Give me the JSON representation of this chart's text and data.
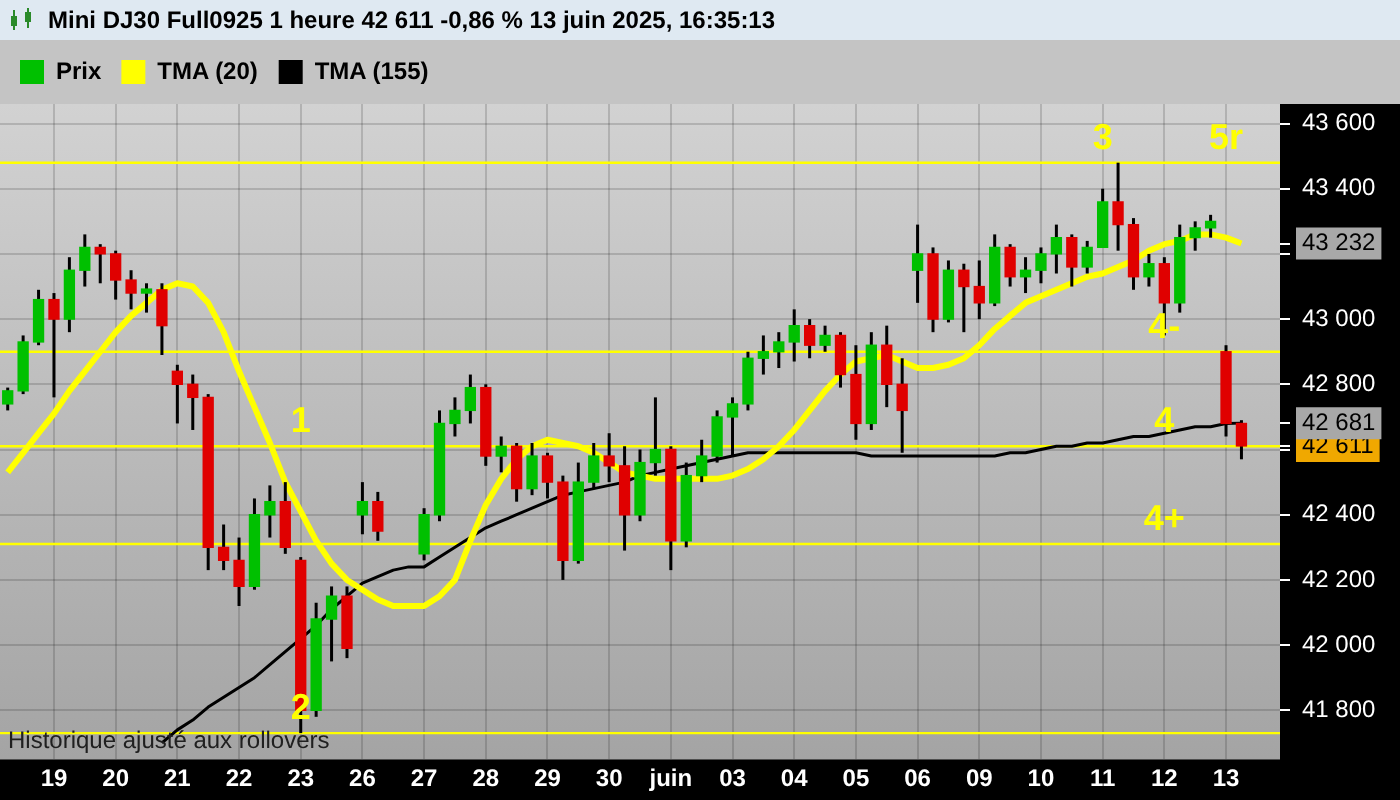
{
  "chart_data": {
    "type": "candlestick",
    "title": "Mini DJ30 Full0925 1 heure 42 611 -0,86 % 13 juin 2025, 16:35:13",
    "categories": [
      null,
      null,
      null,
      "19",
      null,
      null,
      null,
      "20",
      null,
      null,
      null,
      "21",
      null,
      null,
      null,
      "22",
      null,
      null,
      null,
      "23",
      null,
      null,
      null,
      "26",
      null,
      null,
      null,
      "27",
      null,
      null,
      null,
      "28",
      null,
      null,
      null,
      "29",
      null,
      null,
      null,
      "30",
      null,
      null,
      null,
      "juin",
      null,
      null,
      null,
      "03",
      null,
      null,
      null,
      "04",
      null,
      null,
      null,
      "05",
      null,
      null,
      null,
      "06",
      null,
      null,
      null,
      "09",
      null,
      null,
      null,
      "10",
      null,
      null,
      null,
      "11",
      null,
      null,
      null,
      "12",
      null,
      null,
      null,
      "13",
      null,
      null,
      null
    ],
    "series": [
      {
        "name": "Prix",
        "colors": [
          "#00c000",
          "#00c000",
          "#00c000",
          "#e00000",
          "#00c000",
          "#00c000",
          "#e00000",
          "#e00000",
          "#e00000",
          "#00c000",
          "#e00000",
          "#e00000",
          "#e00000",
          "#e00000",
          "#e00000",
          "#e00000",
          "#00c000",
          "#00c000",
          "#e00000",
          "#e00000",
          "#00c000",
          "#00c000",
          "#e00000",
          "#00c000",
          "#e00000",
          null,
          null,
          "#00c000",
          "#00c000",
          "#00c000",
          "#00c000",
          "#e00000",
          "#00c000",
          "#e00000",
          "#00c000",
          "#e00000",
          "#e00000",
          "#00c000",
          "#00c000",
          "#e00000",
          "#e00000",
          "#00c000",
          "#00c000",
          "#e00000",
          "#00c000",
          "#00c000",
          "#00c000",
          "#00c000",
          "#00c000",
          "#00c000",
          "#00c000",
          "#00c000",
          "#e00000",
          "#00c000",
          "#e00000",
          "#e00000",
          "#00c000",
          "#e00000",
          "#e00000",
          "#00c000",
          "#e00000",
          "#00c000",
          "#e00000",
          "#e00000",
          "#00c000",
          "#e00000",
          "#00c000",
          "#00c000",
          "#00c000",
          "#e00000",
          "#00c000",
          "#00c000",
          "#e00000",
          "#e00000",
          "#00c000",
          "#e00000",
          "#00c000",
          "#00c000",
          "#00c000",
          "#e00000",
          "#e00000",
          null,
          null
        ],
        "ohlc": [
          [
            42740,
            42790,
            42720,
            42780
          ],
          [
            42780,
            42950,
            42770,
            42930
          ],
          [
            42930,
            43090,
            42920,
            43060
          ],
          [
            43060,
            43080,
            42760,
            43000
          ],
          [
            43000,
            43190,
            42960,
            43150
          ],
          [
            43150,
            43260,
            43100,
            43220
          ],
          [
            43220,
            43230,
            43110,
            43200
          ],
          [
            43200,
            43210,
            43060,
            43120
          ],
          [
            43120,
            43150,
            43030,
            43080
          ],
          [
            43080,
            43110,
            43020,
            43090
          ],
          [
            43090,
            43110,
            42890,
            42980
          ],
          [
            42840,
            42860,
            42680,
            42800
          ],
          [
            42800,
            42830,
            42660,
            42760
          ],
          [
            42760,
            42770,
            42230,
            42300
          ],
          [
            42300,
            42370,
            42230,
            42260
          ],
          [
            42260,
            42330,
            42120,
            42180
          ],
          [
            42180,
            42450,
            42170,
            42400
          ],
          [
            42400,
            42490,
            42330,
            42440
          ],
          [
            42440,
            42500,
            42280,
            42300
          ],
          [
            42260,
            42270,
            41730,
            41800
          ],
          [
            41800,
            42130,
            41780,
            42080
          ],
          [
            42080,
            42180,
            41950,
            42150
          ],
          [
            42150,
            42180,
            41960,
            41990
          ],
          [
            42400,
            42500,
            42340,
            42440
          ],
          [
            42440,
            42470,
            42320,
            42350
          ],
          null,
          null,
          [
            42280,
            42420,
            42260,
            42400
          ],
          [
            42400,
            42720,
            42380,
            42680
          ],
          [
            42680,
            42760,
            42640,
            42720
          ],
          [
            42720,
            42830,
            42680,
            42790
          ],
          [
            42790,
            42800,
            42550,
            42580
          ],
          [
            42580,
            42640,
            42530,
            42610
          ],
          [
            42610,
            42620,
            42440,
            42480
          ],
          [
            42480,
            42620,
            42460,
            42580
          ],
          [
            42580,
            42590,
            42450,
            42500
          ],
          [
            42500,
            42520,
            42200,
            42260
          ],
          [
            42260,
            42560,
            42250,
            42500
          ],
          [
            42500,
            42620,
            42480,
            42580
          ],
          [
            42580,
            42650,
            42500,
            42550
          ],
          [
            42550,
            42610,
            42290,
            42400
          ],
          [
            42400,
            42600,
            42380,
            42560
          ],
          [
            42560,
            42760,
            42520,
            42600
          ],
          [
            42600,
            42610,
            42230,
            42320
          ],
          [
            42320,
            42560,
            42300,
            42520
          ],
          [
            42520,
            42630,
            42500,
            42580
          ],
          [
            42580,
            42720,
            42560,
            42700
          ],
          [
            42700,
            42760,
            42580,
            42740
          ],
          [
            42740,
            42900,
            42720,
            42880
          ],
          [
            42880,
            42950,
            42830,
            42900
          ],
          [
            42900,
            42960,
            42850,
            42930
          ],
          [
            42930,
            43030,
            42870,
            42980
          ],
          [
            42980,
            43000,
            42880,
            42920
          ],
          [
            42920,
            42980,
            42900,
            42950
          ],
          [
            42950,
            42960,
            42790,
            42830
          ],
          [
            42830,
            42920,
            42630,
            42680
          ],
          [
            42680,
            42960,
            42660,
            42920
          ],
          [
            42920,
            42980,
            42730,
            42800
          ],
          [
            42800,
            42880,
            42590,
            42720
          ],
          [
            43150,
            43290,
            43050,
            43200
          ],
          [
            43200,
            43220,
            42960,
            43000
          ],
          [
            43000,
            43180,
            42990,
            43150
          ],
          [
            43150,
            43170,
            42960,
            43100
          ],
          [
            43100,
            43180,
            43000,
            43050
          ],
          [
            43050,
            43260,
            43040,
            43220
          ],
          [
            43220,
            43230,
            43100,
            43130
          ],
          [
            43130,
            43190,
            43080,
            43150
          ],
          [
            43150,
            43220,
            43110,
            43200
          ],
          [
            43200,
            43290,
            43140,
            43250
          ],
          [
            43250,
            43260,
            43100,
            43160
          ],
          [
            43160,
            43240,
            43140,
            43220
          ],
          [
            43220,
            43400,
            43220,
            43360
          ],
          [
            43360,
            43480,
            43210,
            43290
          ],
          [
            43290,
            43310,
            43090,
            43130
          ],
          [
            43130,
            43200,
            43100,
            43170
          ],
          [
            43170,
            43190,
            42950,
            43050
          ],
          [
            43050,
            43290,
            43020,
            43250
          ],
          [
            43250,
            43300,
            43210,
            43280
          ],
          [
            43280,
            43320,
            43250,
            43300
          ],
          [
            42900,
            42920,
            42640,
            42680
          ],
          [
            42680,
            42690,
            42570,
            42611
          ],
          null,
          null
        ]
      },
      {
        "name": "TMA (20)",
        "type": "line",
        "color": "#ffff00",
        "values": [
          42530,
          42590,
          42650,
          42710,
          42780,
          42840,
          42900,
          42960,
          43010,
          43050,
          43090,
          43110,
          43100,
          43050,
          42960,
          42840,
          42730,
          42620,
          42500,
          42410,
          42320,
          42250,
          42200,
          42170,
          42140,
          42120,
          42120,
          42120,
          42150,
          42200,
          42320,
          42430,
          42510,
          42570,
          42610,
          42630,
          42620,
          42610,
          42590,
          42560,
          42530,
          42520,
          42510,
          42510,
          42510,
          42510,
          42510,
          42520,
          42540,
          42570,
          42610,
          42660,
          42720,
          42780,
          42830,
          42870,
          42880,
          42890,
          42870,
          42850,
          42850,
          42860,
          42880,
          42920,
          42970,
          43010,
          43050,
          43070,
          43090,
          43110,
          43130,
          43140,
          43160,
          43180,
          43210,
          43230,
          43240,
          43260,
          43260,
          43250,
          43232,
          null,
          null
        ]
      },
      {
        "name": "TMA (155)",
        "type": "line",
        "color": "#000000",
        "values": [
          null,
          null,
          null,
          null,
          null,
          null,
          null,
          null,
          null,
          null,
          41700,
          41740,
          41770,
          41810,
          41840,
          41870,
          41900,
          41940,
          41980,
          42020,
          42060,
          42110,
          42150,
          42190,
          42210,
          42230,
          42240,
          42240,
          42270,
          42300,
          42330,
          42360,
          42380,
          42400,
          42420,
          42440,
          42460,
          42470,
          42480,
          42490,
          42500,
          42520,
          42530,
          42540,
          42550,
          42560,
          42570,
          42580,
          42590,
          42590,
          42590,
          42590,
          42590,
          42590,
          42590,
          42590,
          42580,
          42580,
          42580,
          42580,
          42580,
          42580,
          42580,
          42580,
          42580,
          42590,
          42590,
          42600,
          42610,
          42610,
          42620,
          42620,
          42630,
          42640,
          42640,
          42650,
          42660,
          42670,
          42670,
          42680,
          42681,
          null,
          null
        ]
      }
    ],
    "ylim": [
      41650,
      43660
    ],
    "yticks": [
      {
        "value": 41800,
        "label": "41 800"
      },
      {
        "value": 42000,
        "label": "42 000"
      },
      {
        "value": 42200,
        "label": "42 200"
      },
      {
        "value": 42400,
        "label": "42 400"
      },
      {
        "value": 42600,
        "label": null
      },
      {
        "value": 42611,
        "label": "42 611"
      },
      {
        "value": 42681,
        "label": "42 681"
      },
      {
        "value": 42800,
        "label": "42 800"
      },
      {
        "value": 43000,
        "label": "43 000"
      },
      {
        "value": 43200,
        "label": null
      },
      {
        "value": 43232,
        "label": "43 232"
      },
      {
        "value": 43400,
        "label": "43 400"
      },
      {
        "value": 43600,
        "label": "43 600"
      }
    ],
    "ref_lines": [
      {
        "axis": "y",
        "value": 43480,
        "color": "#ffff00"
      },
      {
        "axis": "y",
        "value": 42900,
        "color": "#ffff00"
      },
      {
        "axis": "y",
        "value": 42610,
        "color": "#ffff00"
      },
      {
        "axis": "y",
        "value": 42310,
        "color": "#ffff00"
      },
      {
        "axis": "y",
        "value": 41730,
        "color": "#ffff00"
      }
    ],
    "annotations": [
      {
        "text": "1",
        "x": "23",
        "y": 42610
      },
      {
        "text": "2",
        "x": "23",
        "y": 41730
      },
      {
        "text": "3",
        "x": "11",
        "y": 43480
      },
      {
        "text": "5r",
        "x": "13",
        "y": 43480
      },
      {
        "text": "4-",
        "x": "12",
        "y": 42900
      },
      {
        "text": "4",
        "x": "12",
        "y": 42610
      },
      {
        "text": "4+",
        "x": "12",
        "y": 42310
      },
      "Historique ajusté aux rollovers"
    ],
    "grid": true,
    "legend": "top left"
  }
}
